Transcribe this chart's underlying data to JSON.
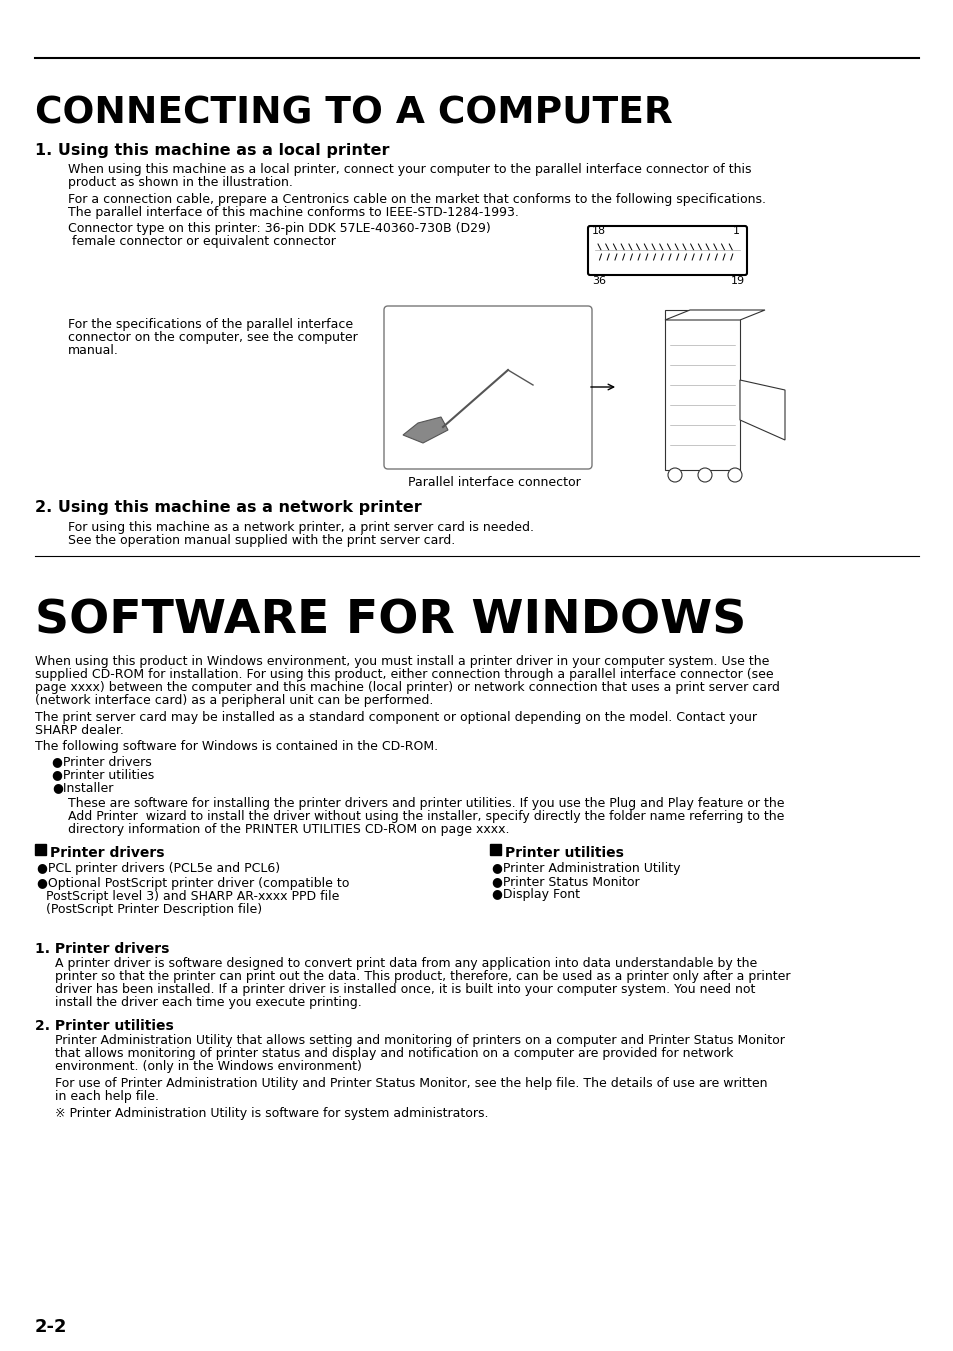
{
  "bg_color": "#ffffff",
  "main_title": "CONNECTING TO A COMPUTER",
  "section1_heading": "1. Using this machine as a local printer",
  "s1b1_line1": "When using this machine as a local printer, connect your computer to the parallel interface connector of this",
  "s1b1_line2": "product as shown in the illustration.",
  "s1b2_line1": "For a connection cable, prepare a Centronics cable on the market that conforms to the following specifications.",
  "s1b2_line2": "The parallel interface of this machine conforms to IEEE-STD-1284-1993.",
  "conn_label_line1": "Connector type on this printer: 36-pin DDK 57LE-40360-730B (D29)",
  "conn_label_line2": " female connector or equivalent connector",
  "parallel_spec_line1": "For the specifications of the parallel interface",
  "parallel_spec_line2": "connector on the computer, see the computer",
  "parallel_spec_line3": "manual.",
  "parallel_caption": "Parallel interface connector",
  "section2_heading": "2. Using this machine as a network printer",
  "s2b_line1": "For using this machine as a network printer, a print server card is needed.",
  "s2b_line2": "See the operation manual supplied with the print server card.",
  "software_title": "SOFTWARE FOR WINDOWS",
  "sw1_l1": "When using this product in Windows environment, you must install a printer driver in your computer system. Use the",
  "sw1_l2": "supplied CD-ROM for installation. For using this product, either connection through a parallel interface connector (see",
  "sw1_l3": "page xxxx) between the computer and this machine (local printer) or network connection that uses a print server card",
  "sw1_l4": "(network interface card) as a peripheral unit can be performed.",
  "sw2_l1": "The print server card may be installed as a standard component or optional depending on the model. Contact your",
  "sw2_l2": "SHARP dealer.",
  "sw3": "The following software for Windows is contained in the CD-ROM.",
  "sw_bullets": [
    "●Printer drivers",
    "●Printer utilities",
    "●Installer"
  ],
  "sw_inst_l1": "These are software for installing the printer drivers and printer utilities. If you use the Plug and Play feature or the",
  "sw_inst_l2": "Add Printer  wizard to install the driver without using the installer, specify directly the folder name referring to the",
  "sw_inst_l3": "directory information of the PRINTER UTILITIES CD-ROM on page xxxx.",
  "pd_heading": "Printer drivers",
  "pd_b1": "●PCL printer drivers (PCL5e and PCL6)",
  "pd_b2_l1": "●Optional PostScript printer driver (compatible to",
  "pd_b2_l2": "PostScript level 3) and SHARP AR-xxxx PPD file",
  "pd_b2_l3": "(PostScript Printer Description file)",
  "pu_heading": "Printer utilities",
  "pu_b1": "●Printer Administration Utility",
  "pu_b2": "●Printer Status Monitor",
  "pu_b3": "●Display Font",
  "num1_heading": "1. Printer drivers",
  "n1_l1": "A printer driver is software designed to convert print data from any application into data understandable by the",
  "n1_l2": "printer so that the printer can print out the data. This product, therefore, can be used as a printer only after a printer",
  "n1_l3": "driver has been installed. If a printer driver is installed once, it is built into your computer system. You need not",
  "n1_l4": "install the driver each time you execute printing.",
  "num2_heading": "2. Printer utilities",
  "n2_l1": "Printer Administration Utility that allows setting and monitoring of printers on a computer and Printer Status Monitor",
  "n2_l2": "that allows monitoring of printer status and display and notification on a computer are provided for network",
  "n2_l3": "environment. (only in the Windows environment)",
  "n2_l4": "For use of Printer Administration Utility and Printer Status Monitor, see the help file. The details of use are written",
  "n2_l5": "in each help file.",
  "n2_l6": "※ Printer Administration Utility is software for system administrators.",
  "page_num": "2-2"
}
